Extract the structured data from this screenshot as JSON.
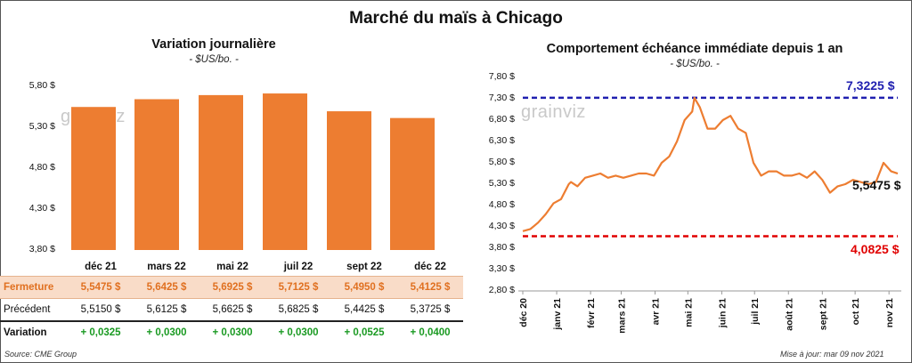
{
  "title": "Marché du maïs à Chicago",
  "left": {
    "subtitle": "Variation journalière",
    "unit": "- $US/bo. -",
    "watermark": "grainviz",
    "yticks": [
      "5,80 $",
      "5,30 $",
      "4,80 $",
      "4,30 $",
      "3,80 $"
    ],
    "row_labels": {
      "close": "Fermeture",
      "prev": "Précédent",
      "var": "Variation"
    },
    "columns": [
      "déc 21",
      "mars 22",
      "mai 22",
      "juil 22",
      "sept 22",
      "déc 22"
    ],
    "close_text": [
      "5,5475  $",
      "5,6425  $",
      "5,6925  $",
      "5,7125  $",
      "5,4950  $",
      "5,4125  $"
    ],
    "prev_text": [
      "5,5150  $",
      "5,6125  $",
      "5,6625  $",
      "5,6825  $",
      "5,4425  $",
      "5,3725  $"
    ],
    "var_text": [
      "+ 0,0325",
      "+ 0,0300",
      "+ 0,0300",
      "+ 0,0300",
      "+ 0,0525",
      "+ 0,0400"
    ],
    "source": "Source: CME Group"
  },
  "right": {
    "subtitle": "Comportement  échéance immédiate depuis 1 an",
    "unit": "- $US/bo. -",
    "watermark": "grainviz",
    "yticks": [
      "7,80 $",
      "7,30 $",
      "6,80 $",
      "6,30 $",
      "5,80 $",
      "5,30 $",
      "4,80 $",
      "4,30 $",
      "3,80 $",
      "3,30 $",
      "2,80 $"
    ],
    "xticks": [
      "déc 20",
      "janv 21",
      "févr 21",
      "mars 21",
      "avr 21",
      "mai 21",
      "juin 21",
      "juil 21",
      "août 21",
      "sept 21",
      "oct 21",
      "nov 21"
    ],
    "high_label": "7,3225 $",
    "low_label": "4,0825 $",
    "last_label": "5,5475 $",
    "updated": "Mise à jour: mar 09 nov 2021"
  },
  "colors": {
    "bar": "#ed7d31",
    "line": "#ed7d31",
    "high": "#2020b0",
    "low": "#e00000",
    "positive": "#1a9a22"
  },
  "chart_data": [
    {
      "type": "bar",
      "title": "Variation journalière",
      "ylabel": "$US/bo.",
      "categories": [
        "déc 21",
        "mars 22",
        "mai 22",
        "juil 22",
        "sept 22",
        "déc 22"
      ],
      "values": [
        5.5475,
        5.6425,
        5.6925,
        5.7125,
        5.495,
        5.4125
      ],
      "ylim": [
        3.8,
        5.8
      ]
    },
    {
      "type": "line",
      "title": "Comportement  échéance immédiate depuis 1 an",
      "ylabel": "$US/bo.",
      "ylim": [
        2.8,
        7.8
      ],
      "high": 7.3225,
      "low": 4.0825,
      "last": 5.5475,
      "x": [
        "2020-12-01",
        "2020-12-08",
        "2020-12-15",
        "2020-12-22",
        "2020-12-29",
        "2021-01-05",
        "2021-01-12",
        "2021-01-14",
        "2021-01-20",
        "2021-01-27",
        "2021-02-03",
        "2021-02-10",
        "2021-02-17",
        "2021-02-24",
        "2021-03-03",
        "2021-03-10",
        "2021-03-17",
        "2021-03-24",
        "2021-03-31",
        "2021-04-07",
        "2021-04-14",
        "2021-04-21",
        "2021-04-28",
        "2021-05-05",
        "2021-05-07",
        "2021-05-12",
        "2021-05-19",
        "2021-05-26",
        "2021-06-02",
        "2021-06-09",
        "2021-06-16",
        "2021-06-23",
        "2021-06-30",
        "2021-07-07",
        "2021-07-14",
        "2021-07-21",
        "2021-07-28",
        "2021-08-04",
        "2021-08-11",
        "2021-08-18",
        "2021-08-25",
        "2021-09-01",
        "2021-09-08",
        "2021-09-15",
        "2021-09-22",
        "2021-09-29",
        "2021-10-06",
        "2021-10-13",
        "2021-10-20",
        "2021-10-27",
        "2021-11-03",
        "2021-11-09"
      ],
      "values": [
        4.2,
        4.25,
        4.4,
        4.6,
        4.85,
        4.95,
        5.3,
        5.35,
        5.25,
        5.45,
        5.5,
        5.55,
        5.45,
        5.5,
        5.45,
        5.5,
        5.55,
        5.55,
        5.5,
        5.8,
        5.95,
        6.3,
        6.8,
        7.0,
        7.3225,
        7.1,
        6.6,
        6.6,
        6.8,
        6.9,
        6.6,
        6.5,
        5.8,
        5.5,
        5.6,
        5.6,
        5.5,
        5.5,
        5.55,
        5.45,
        5.6,
        5.4,
        5.1,
        5.25,
        5.3,
        5.4,
        5.35,
        5.3,
        5.35,
        5.8,
        5.6,
        5.5475
      ]
    }
  ]
}
